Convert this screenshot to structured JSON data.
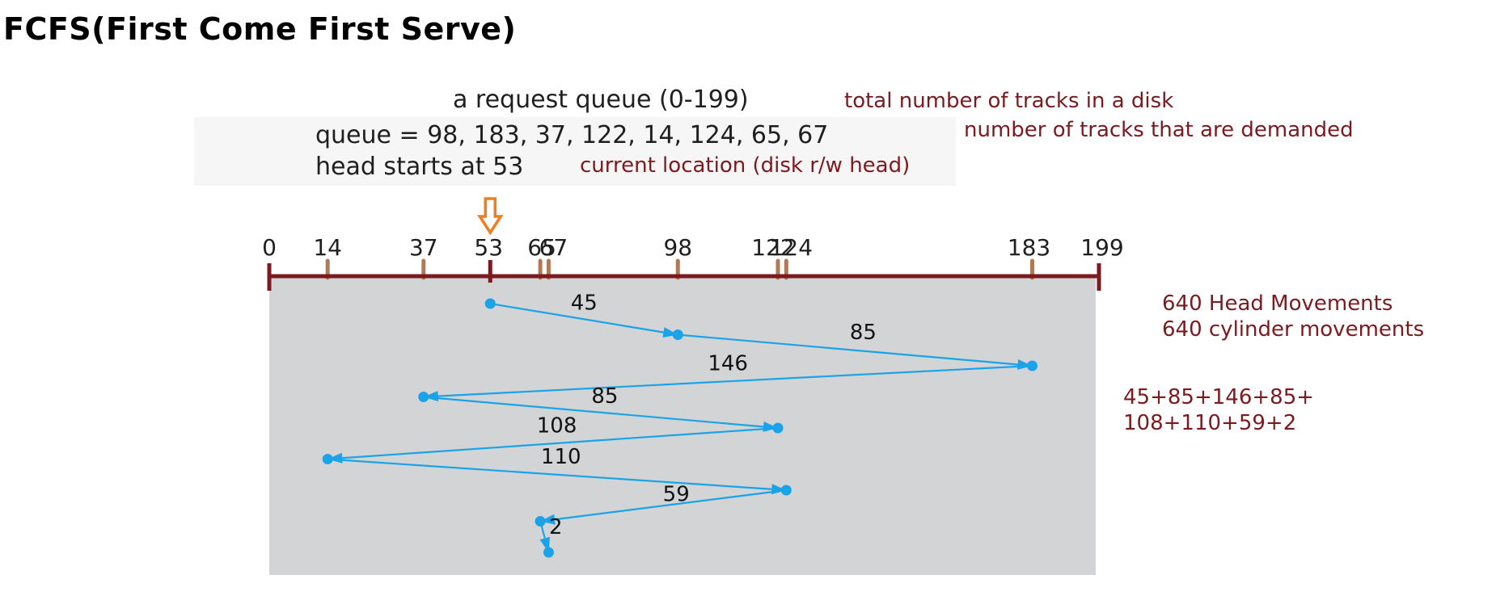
{
  "title": "FCFS(First Come First Serve)",
  "header": {
    "request_queue": "a request queue (0-199)",
    "request_queue_note": "total number of tracks in a disk",
    "queue": "queue = 98, 183, 37, 122, 14, 124, 65, 67",
    "queue_note": "number of tracks that are demanded",
    "head": "head starts at 53",
    "head_note": "current location (disk r/w head)"
  },
  "track_axis": {
    "min": 0,
    "max": 199,
    "tick_labels": [
      {
        "value": 0,
        "label": "0"
      },
      {
        "value": 14,
        "label": "14"
      },
      {
        "value": 37,
        "label": "37"
      },
      {
        "value": 53,
        "label": "53"
      },
      {
        "value": 65,
        "label": "65"
      },
      {
        "value": 67,
        "label": "67"
      },
      {
        "value": 98,
        "label": "98"
      },
      {
        "value": 122,
        "label": "122"
      },
      {
        "value": 124,
        "label": "124"
      },
      {
        "value": 183,
        "label": "183"
      },
      {
        "value": 199,
        "label": "199"
      }
    ]
  },
  "head_start": 53,
  "path": [
    53,
    98,
    183,
    37,
    122,
    14,
    124,
    65,
    67
  ],
  "segment_labels": [
    "45",
    "85",
    "146",
    "85",
    "108",
    "110",
    "59",
    "2"
  ],
  "summary": {
    "line1": "640 Head Movements",
    "line2": "640 cylinder movements"
  },
  "sum": {
    "line1": "45+85+146+85+",
    "line2": "108+110+59+2"
  },
  "colors": {
    "axis": "#7b1a1f",
    "tick": "#b07a5a",
    "path": "#1aa3e8",
    "panel": "#d3d4d6",
    "arrow": "#f07d1e",
    "note": "#7b1a1f"
  }
}
